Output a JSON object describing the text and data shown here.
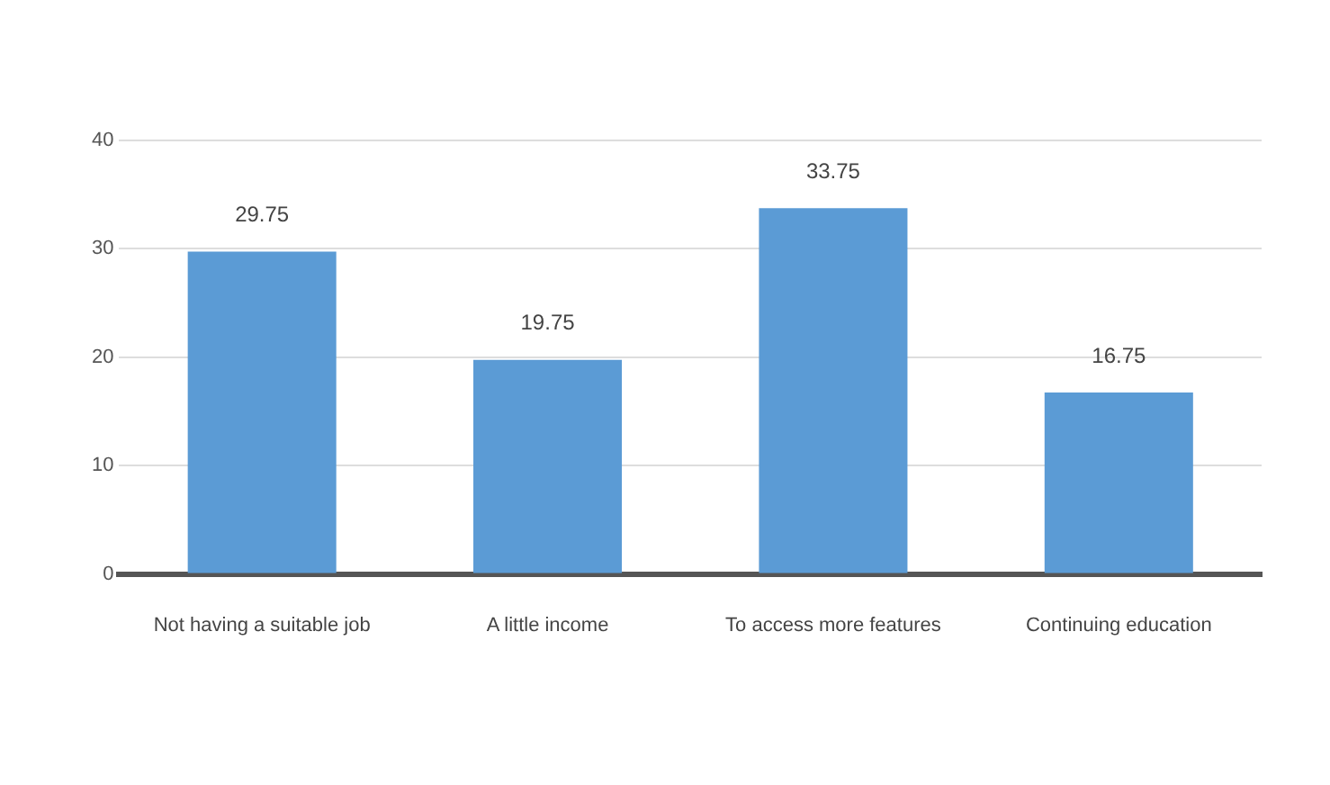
{
  "chart_data": {
    "type": "bar",
    "categories": [
      "Not having a suitable job",
      "A little income",
      "To access more features",
      "Continuing education"
    ],
    "values": [
      29.75,
      19.75,
      33.75,
      16.75
    ],
    "color": "#5b9bd5",
    "ylim": [
      0,
      40
    ],
    "yticks": [
      0,
      10,
      20,
      30,
      40
    ],
    "grid": "y",
    "legend": false,
    "data_labels": true
  }
}
